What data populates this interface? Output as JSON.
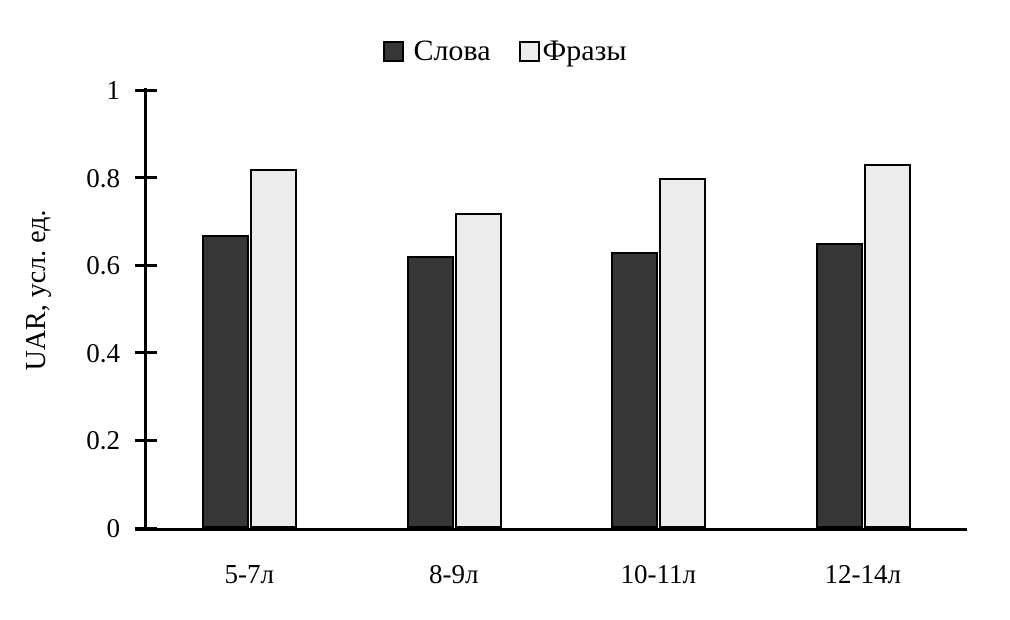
{
  "chart_data": {
    "type": "bar",
    "title": "",
    "categories": [
      "5-7л",
      "8-9л",
      "10-11л",
      "12-14л"
    ],
    "series": [
      {
        "name": "Слова",
        "color": "#363636",
        "values": [
          0.67,
          0.62,
          0.63,
          0.65
        ]
      },
      {
        "name": "Фразы",
        "color": "#ececec",
        "values": [
          0.82,
          0.72,
          0.8,
          0.83
        ]
      }
    ],
    "xlabel": "",
    "ylabel": "UAR, усл. ед.",
    "ylim": [
      0,
      1
    ],
    "yticks": [
      0,
      0.2,
      0.4,
      0.6,
      0.8,
      1
    ],
    "ytick_labels": [
      "0",
      "0.2",
      "0.4",
      "0.6",
      "0.8",
      "1"
    ],
    "grid": false,
    "legend_position": "top-center",
    "axis_color": "#000000",
    "bar_border_color": "#000000",
    "background_color": "#ffffff"
  }
}
